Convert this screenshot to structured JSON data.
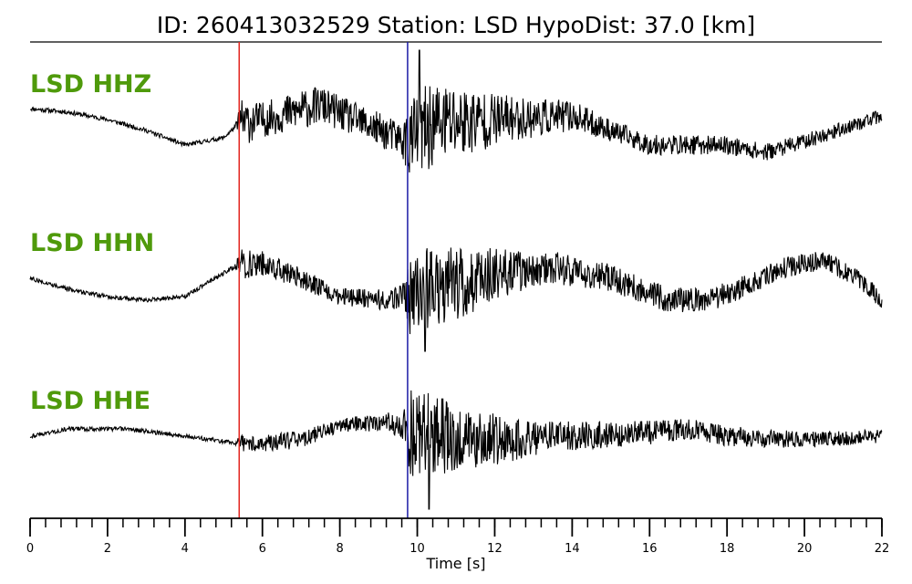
{
  "title": "ID: 260413032529   Station: LSD   HypoDist:    37.0 [km]",
  "colors": {
    "label": "#4f9a0b",
    "p_pick": "#e3261f",
    "s_pick": "#1a1aa6",
    "trace": "#000000"
  },
  "chart_data": {
    "type": "line",
    "xlabel": "Time [s]",
    "xlim": [
      0,
      22
    ],
    "x_major_ticks": [
      0,
      2,
      4,
      6,
      8,
      10,
      12,
      14,
      16,
      18,
      20,
      22
    ],
    "x_tick_labels": [
      "0",
      "2",
      "4",
      "6",
      "8",
      "10",
      "12",
      "14",
      "16",
      "18",
      "20",
      "22"
    ],
    "x_minor_step": 0.4,
    "picks": [
      {
        "phase": "P",
        "time": 5.4,
        "color": "#e3261f"
      },
      {
        "phase": "S",
        "time": 9.75,
        "color": "#1a1aa6"
      }
    ],
    "series": [
      {
        "name": "LSD HHZ",
        "envelope": [
          [
            0,
            0.05
          ],
          [
            5.3,
            0.05
          ],
          [
            5.45,
            0.55
          ],
          [
            6,
            0.4
          ],
          [
            7,
            0.45
          ],
          [
            8,
            0.4
          ],
          [
            9.6,
            0.4
          ],
          [
            9.8,
            0.9
          ],
          [
            10.2,
            1.0
          ],
          [
            11,
            0.9
          ],
          [
            12,
            0.6
          ],
          [
            13,
            0.45
          ],
          [
            15,
            0.25
          ],
          [
            22,
            0.15
          ]
        ],
        "baseline": [
          [
            0,
            0.2
          ],
          [
            1,
            0.15
          ],
          [
            2,
            0.05
          ],
          [
            3,
            -0.1
          ],
          [
            4,
            -0.3
          ],
          [
            5,
            -0.2
          ],
          [
            5.4,
            0.0
          ],
          [
            6,
            0.05
          ],
          [
            7.5,
            0.25
          ],
          [
            9.7,
            -0.25
          ],
          [
            10.5,
            0.0
          ],
          [
            12,
            0.05
          ],
          [
            14,
            0.1
          ],
          [
            16,
            -0.3
          ],
          [
            18,
            -0.3
          ],
          [
            19,
            -0.4
          ],
          [
            20,
            -0.25
          ],
          [
            22,
            0.1
          ]
        ],
        "peak_time": 10.05,
        "peak_value": 1.0,
        "seed": 11
      },
      {
        "name": "LSD HHN",
        "envelope": [
          [
            0,
            0.05
          ],
          [
            5.3,
            0.05
          ],
          [
            5.45,
            0.35
          ],
          [
            6.5,
            0.25
          ],
          [
            8,
            0.2
          ],
          [
            9.6,
            0.25
          ],
          [
            9.8,
            0.9
          ],
          [
            10.2,
            1.0
          ],
          [
            11,
            0.85
          ],
          [
            12,
            0.6
          ],
          [
            13,
            0.4
          ],
          [
            14,
            0.35
          ],
          [
            16,
            0.3
          ],
          [
            22,
            0.2
          ]
        ],
        "baseline": [
          [
            0,
            0.0
          ],
          [
            1,
            -0.15
          ],
          [
            2,
            -0.25
          ],
          [
            3,
            -0.3
          ],
          [
            4,
            -0.25
          ],
          [
            5.4,
            0.2
          ],
          [
            6,
            0.2
          ],
          [
            7,
            0.0
          ],
          [
            8,
            -0.25
          ],
          [
            9.2,
            -0.3
          ],
          [
            10,
            -0.2
          ],
          [
            12,
            0.05
          ],
          [
            13.5,
            0.15
          ],
          [
            15,
            0.0
          ],
          [
            16.5,
            -0.3
          ],
          [
            17.5,
            -0.3
          ],
          [
            18.5,
            -0.1
          ],
          [
            19.5,
            0.15
          ],
          [
            20.5,
            0.25
          ],
          [
            21.5,
            -0.05
          ],
          [
            22,
            -0.3
          ]
        ],
        "peak_time": 10.2,
        "peak_value": -1.0,
        "seed": 27
      },
      {
        "name": "LSD HHE",
        "envelope": [
          [
            0,
            0.05
          ],
          [
            5.3,
            0.05
          ],
          [
            5.45,
            0.2
          ],
          [
            7,
            0.2
          ],
          [
            8,
            0.15
          ],
          [
            9.6,
            0.25
          ],
          [
            9.8,
            1.0
          ],
          [
            10.4,
            1.0
          ],
          [
            11,
            0.75
          ],
          [
            12,
            0.6
          ],
          [
            13,
            0.4
          ],
          [
            15,
            0.3
          ],
          [
            17,
            0.25
          ],
          [
            22,
            0.15
          ]
        ],
        "baseline": [
          [
            0,
            0.0
          ],
          [
            1,
            0.1
          ],
          [
            2.5,
            0.1
          ],
          [
            4,
            0.0
          ],
          [
            5.4,
            -0.1
          ],
          [
            6,
            -0.1
          ],
          [
            7,
            -0.05
          ],
          [
            8,
            0.15
          ],
          [
            9.2,
            0.2
          ],
          [
            10,
            0.0
          ],
          [
            12,
            -0.05
          ],
          [
            14,
            0.0
          ],
          [
            16,
            0.05
          ],
          [
            17,
            0.1
          ],
          [
            18,
            0.0
          ],
          [
            20,
            -0.05
          ],
          [
            22,
            0.0
          ]
        ],
        "peak_time": 10.3,
        "peak_value": -1.0,
        "seed": 43
      }
    ]
  }
}
